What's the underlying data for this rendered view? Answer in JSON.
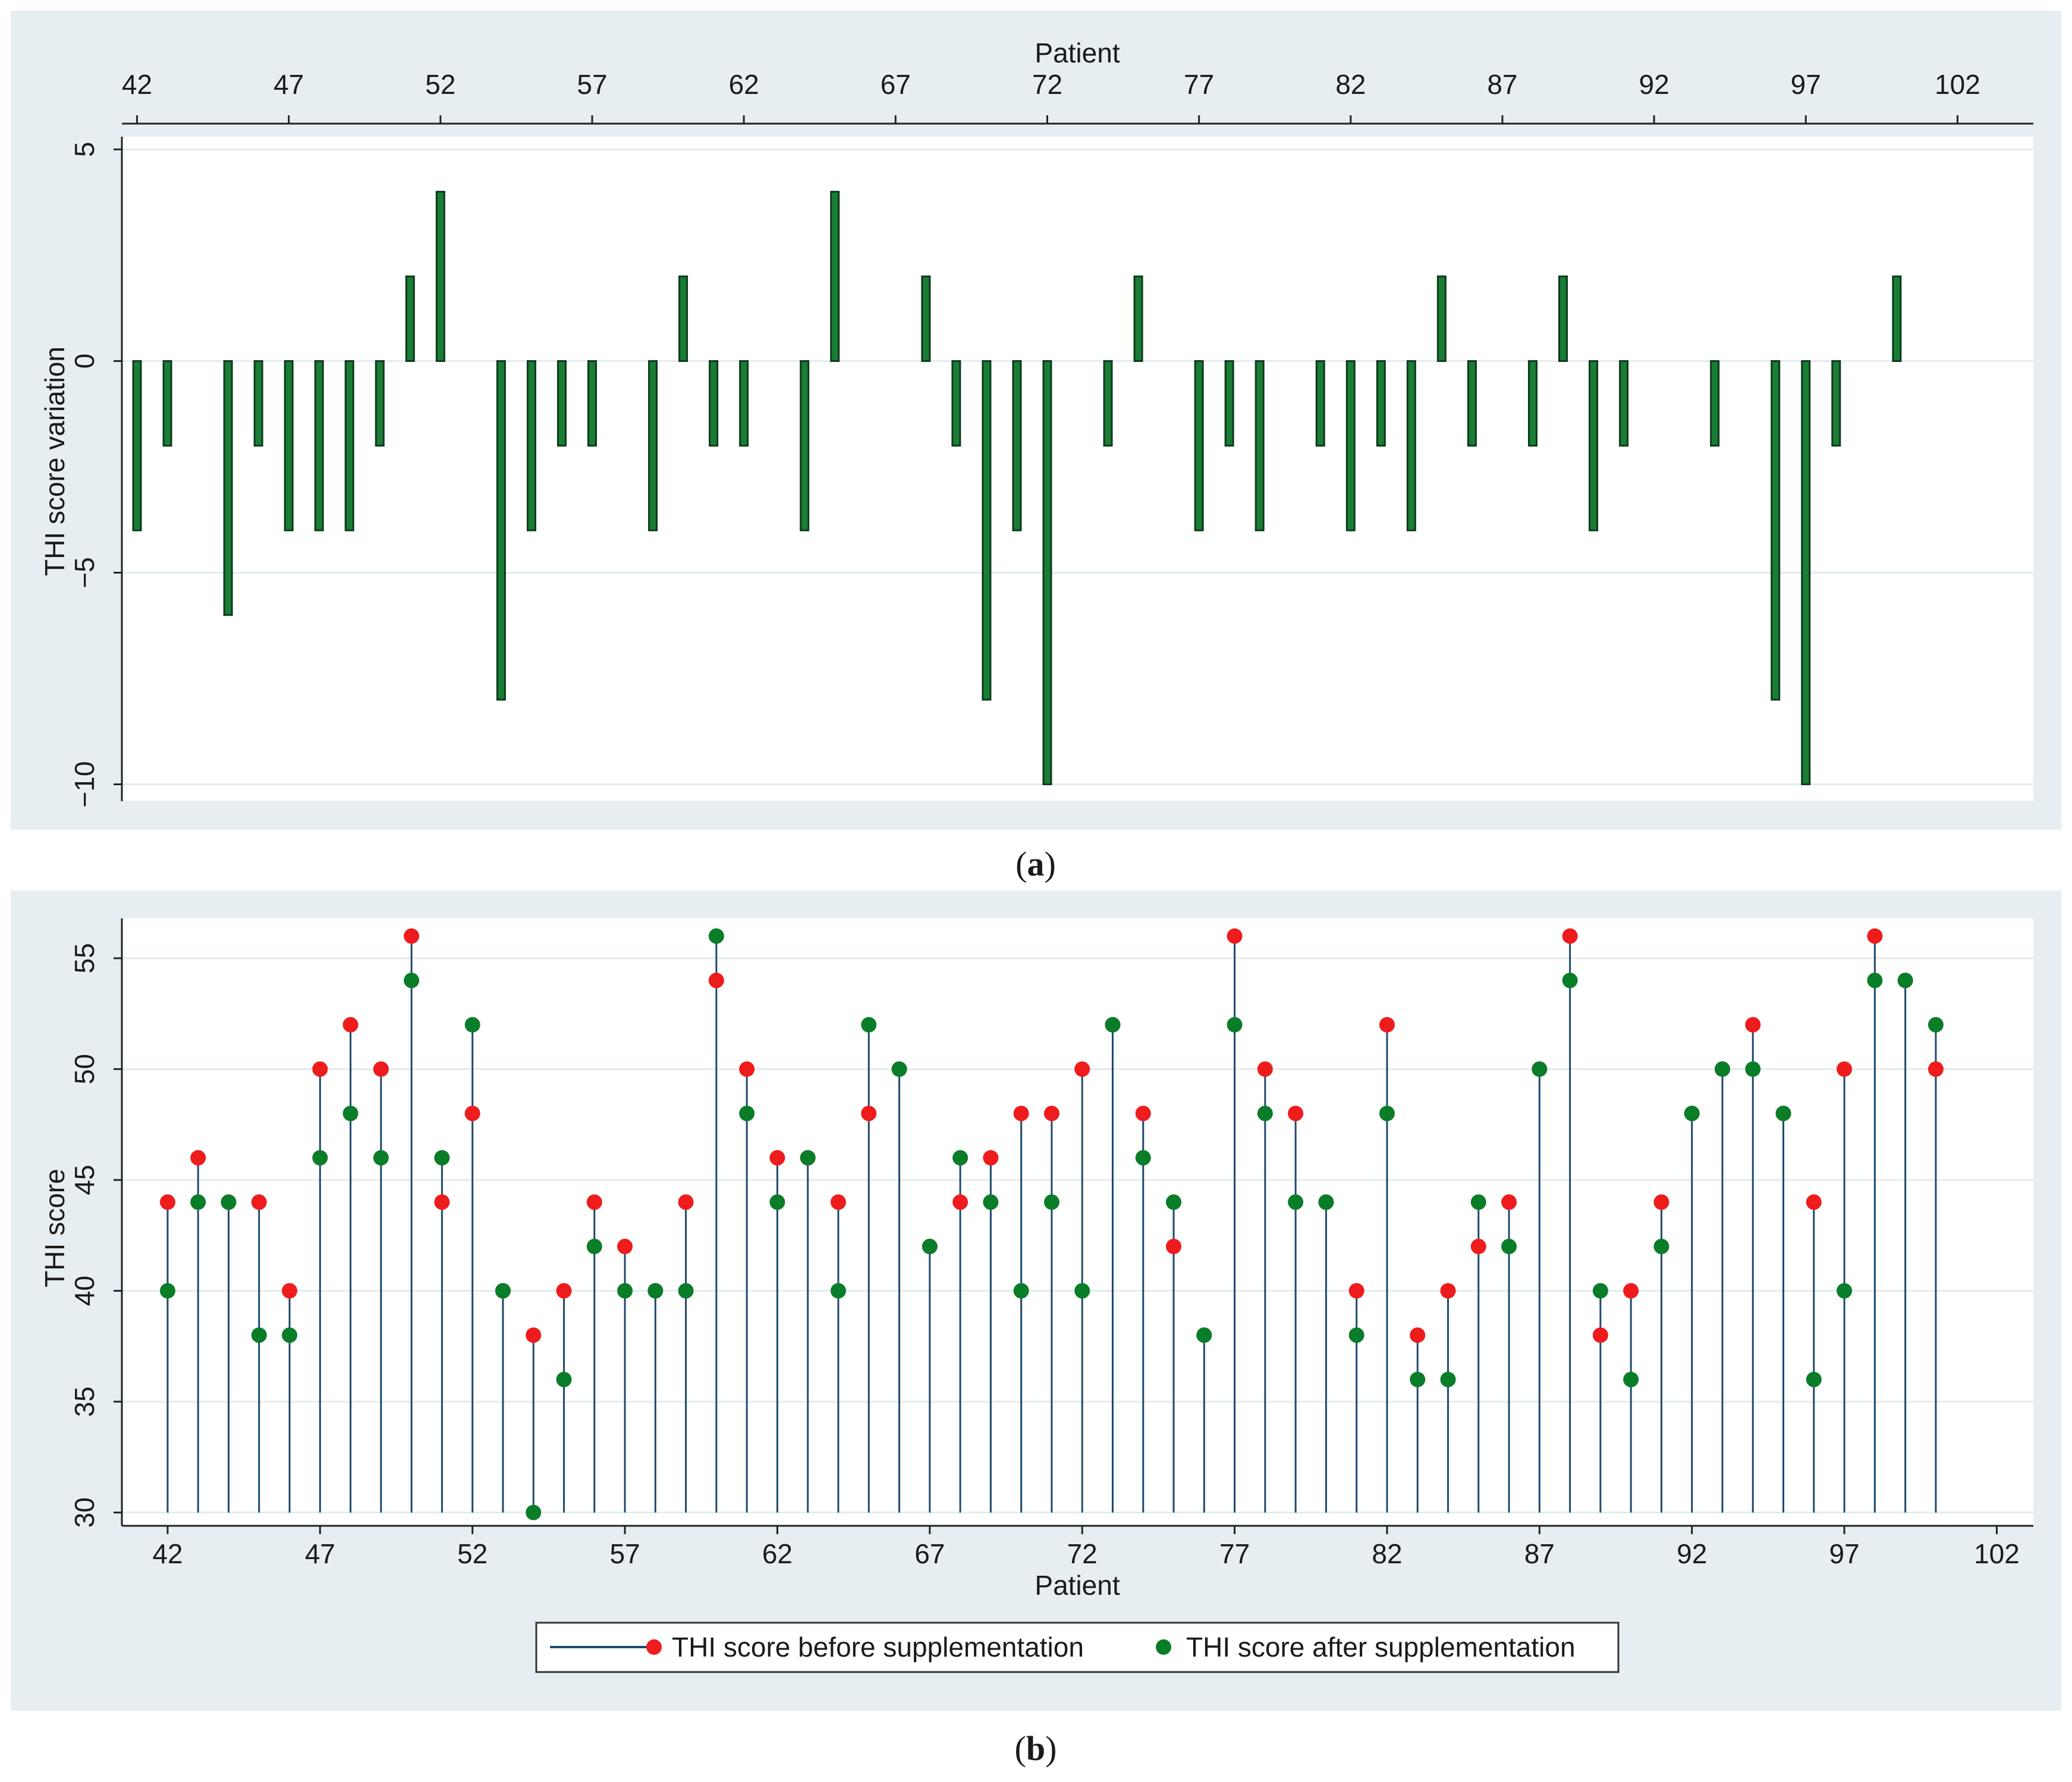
{
  "colors": {
    "panel_bg": "#e6eef2",
    "plot_bg": "#ffffff",
    "grid": "#e3ecef",
    "bar_fill": "#1a7d36",
    "bar_stroke": "#0d3a1a",
    "stem": "#1e4a6e",
    "before": "#ee1c1c",
    "after": "#0a7d28"
  },
  "panel_a": {
    "caption": "(a)",
    "caption_open": "(",
    "caption_letter": "a",
    "caption_close": ")"
  },
  "panel_b": {
    "caption": "(b)",
    "caption_open": "(",
    "caption_letter": "b",
    "caption_close": ")"
  },
  "chart_data": [
    {
      "id": "a",
      "type": "bar",
      "xlabel": "Patient",
      "ylabel": "THI score variation",
      "xlim": [
        41.5,
        104.5
      ],
      "ylim": [
        -10.4,
        5.3
      ],
      "xticks": [
        42,
        47,
        52,
        57,
        62,
        67,
        72,
        77,
        82,
        87,
        92,
        97,
        102
      ],
      "yticks": [
        5,
        0,
        -5,
        -10
      ],
      "ytick_labels": [
        "5",
        "0",
        "−5",
        "−10"
      ],
      "x": [
        42,
        43,
        45,
        46,
        47,
        48,
        49,
        50,
        51,
        52,
        54,
        55,
        56,
        57,
        59,
        60,
        61,
        62,
        64,
        65,
        68,
        69,
        70,
        71,
        72,
        74,
        75,
        77,
        78,
        79,
        81,
        82,
        83,
        84,
        85,
        86,
        88,
        89,
        90,
        91,
        94,
        96,
        97,
        98,
        100
      ],
      "values": [
        -4,
        -2,
        -6,
        -2,
        -4,
        -4,
        -4,
        -2,
        2,
        4,
        -8,
        -4,
        -2,
        -2,
        -4,
        2,
        -2,
        -2,
        -4,
        4,
        2,
        -2,
        -8,
        -4,
        -10,
        -2,
        2,
        -4,
        -2,
        -4,
        -2,
        -4,
        -2,
        -4,
        2,
        -2,
        -2,
        2,
        -4,
        -2,
        -2,
        -8,
        -10,
        -2,
        2
      ]
    },
    {
      "id": "b",
      "type": "scatter",
      "xlabel": "Patient",
      "ylabel": "THI score",
      "xlim": [
        40.5,
        103.2
      ],
      "ylim": [
        29.4,
        56.8
      ],
      "xticks": [
        42,
        47,
        52,
        57,
        62,
        67,
        72,
        77,
        82,
        87,
        92,
        97,
        102
      ],
      "yticks": [
        30,
        35,
        40,
        45,
        50,
        55
      ],
      "legend_position": "bottom",
      "series": [
        {
          "name": "THI score before supplementation",
          "color": "#ee1c1c",
          "x": [
            42,
            43,
            44,
            45,
            46,
            47,
            48,
            49,
            50,
            51,
            52,
            53,
            54,
            55,
            56,
            57,
            58,
            59,
            60,
            61,
            62,
            63,
            64,
            65,
            66,
            67,
            68,
            69,
            70,
            71,
            72,
            73,
            74,
            75,
            76,
            77,
            78,
            79,
            80,
            81,
            82,
            83,
            84,
            85,
            86,
            87,
            88,
            89,
            90,
            91,
            92,
            93,
            94,
            95,
            96,
            97,
            98,
            99,
            100
          ],
          "values": [
            44,
            46,
            44,
            44,
            40,
            50,
            52,
            50,
            56,
            44,
            48,
            40,
            38,
            40,
            44,
            42,
            40,
            44,
            54,
            50,
            46,
            46,
            44,
            48,
            50,
            42,
            44,
            46,
            48,
            48,
            50,
            52,
            48,
            42,
            38,
            56,
            50,
            48,
            44,
            40,
            52,
            38,
            40,
            42,
            44,
            50,
            56,
            38,
            40,
            44,
            48,
            50,
            52,
            48,
            44,
            50,
            56,
            54,
            50
          ]
        },
        {
          "name": "THI score after supplementation",
          "color": "#0a7d28",
          "x": [
            42,
            43,
            44,
            45,
            46,
            47,
            48,
            49,
            50,
            51,
            52,
            53,
            54,
            55,
            56,
            57,
            58,
            59,
            60,
            61,
            62,
            63,
            64,
            65,
            66,
            67,
            68,
            69,
            70,
            71,
            72,
            73,
            74,
            75,
            76,
            77,
            78,
            79,
            80,
            81,
            82,
            83,
            84,
            85,
            86,
            87,
            88,
            89,
            90,
            91,
            92,
            93,
            94,
            95,
            96,
            97,
            98,
            99,
            100
          ],
          "values": [
            40,
            44,
            44,
            38,
            38,
            46,
            48,
            46,
            54,
            46,
            52,
            40,
            30,
            36,
            42,
            40,
            40,
            40,
            56,
            48,
            44,
            46,
            40,
            52,
            50,
            42,
            46,
            44,
            40,
            44,
            40,
            52,
            46,
            44,
            38,
            52,
            48,
            44,
            44,
            38,
            48,
            36,
            36,
            44,
            42,
            50,
            54,
            40,
            36,
            42,
            48,
            50,
            50,
            48,
            36,
            40,
            54,
            54,
            52
          ]
        }
      ]
    }
  ]
}
